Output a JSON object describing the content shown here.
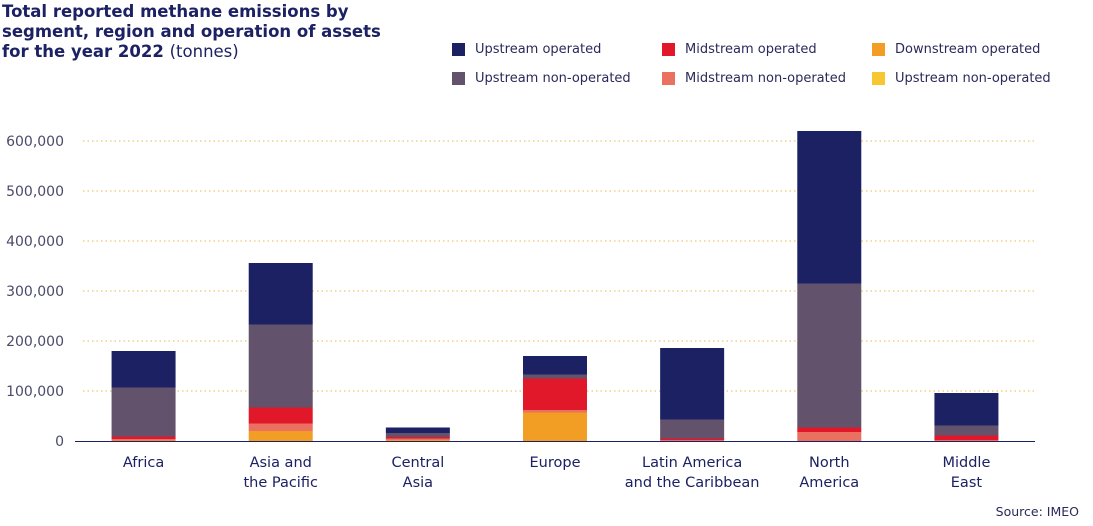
{
  "chart_data": {
    "type": "stacked-bar",
    "title_bold": "Total reported methane emissions by segment, region and operation of assets for the year 2022",
    "title_suffix": "(tonnes)",
    "source": "Source: IMEO",
    "ylim": [
      0,
      600000
    ],
    "yticks": [
      0,
      100000,
      200000,
      300000,
      400000,
      500000,
      600000
    ],
    "ytick_labels": [
      "0",
      "100,000",
      "200,000",
      "300,000",
      "400,000",
      "500,000",
      "600,000"
    ],
    "categories": [
      [
        "Africa"
      ],
      [
        "Asia and",
        "the Pacific"
      ],
      [
        "Central",
        "Asia"
      ],
      [
        "Europe"
      ],
      [
        "Latin America",
        "and the Caribbean"
      ],
      [
        "North",
        "America"
      ],
      [
        "Middle",
        "East"
      ]
    ],
    "series": [
      {
        "name": "Downstream operated",
        "color": "#f29e24",
        "values": [
          1000,
          20000,
          2000,
          57000,
          0,
          0,
          0
        ]
      },
      {
        "name": "Upstream non-operated",
        "color": "#f7c631",
        "values": [
          0,
          0,
          0,
          0,
          0,
          0,
          0
        ]
      },
      {
        "name": "Midstream non-operated",
        "color": "#ea7060",
        "values": [
          3000,
          15000,
          3000,
          5000,
          2000,
          18000,
          2000
        ]
      },
      {
        "name": "Midstream operated",
        "color": "#e0182a",
        "values": [
          5000,
          32000,
          3000,
          63000,
          3000,
          9000,
          9000
        ]
      },
      {
        "name": "Upstream non-operated",
        "color": "#63526c",
        "values": [
          98000,
          166000,
          8000,
          8000,
          38000,
          288000,
          20000
        ]
      },
      {
        "name": "Upstream operated",
        "color": "#1b2163",
        "values": [
          73000,
          123000,
          11000,
          37000,
          143000,
          305000,
          65000
        ]
      }
    ],
    "legend": [
      {
        "name": "Upstream operated",
        "color": "#1b2163"
      },
      {
        "name": "Midstream operated",
        "color": "#e0182a"
      },
      {
        "name": "Downstream operated",
        "color": "#f29e24"
      },
      {
        "name": "Upstream non-operated",
        "color": "#63526c"
      },
      {
        "name": "Midstream non-operated",
        "color": "#ea7060"
      },
      {
        "name": "Upstream non-operated",
        "color": "#f7c631"
      }
    ]
  }
}
